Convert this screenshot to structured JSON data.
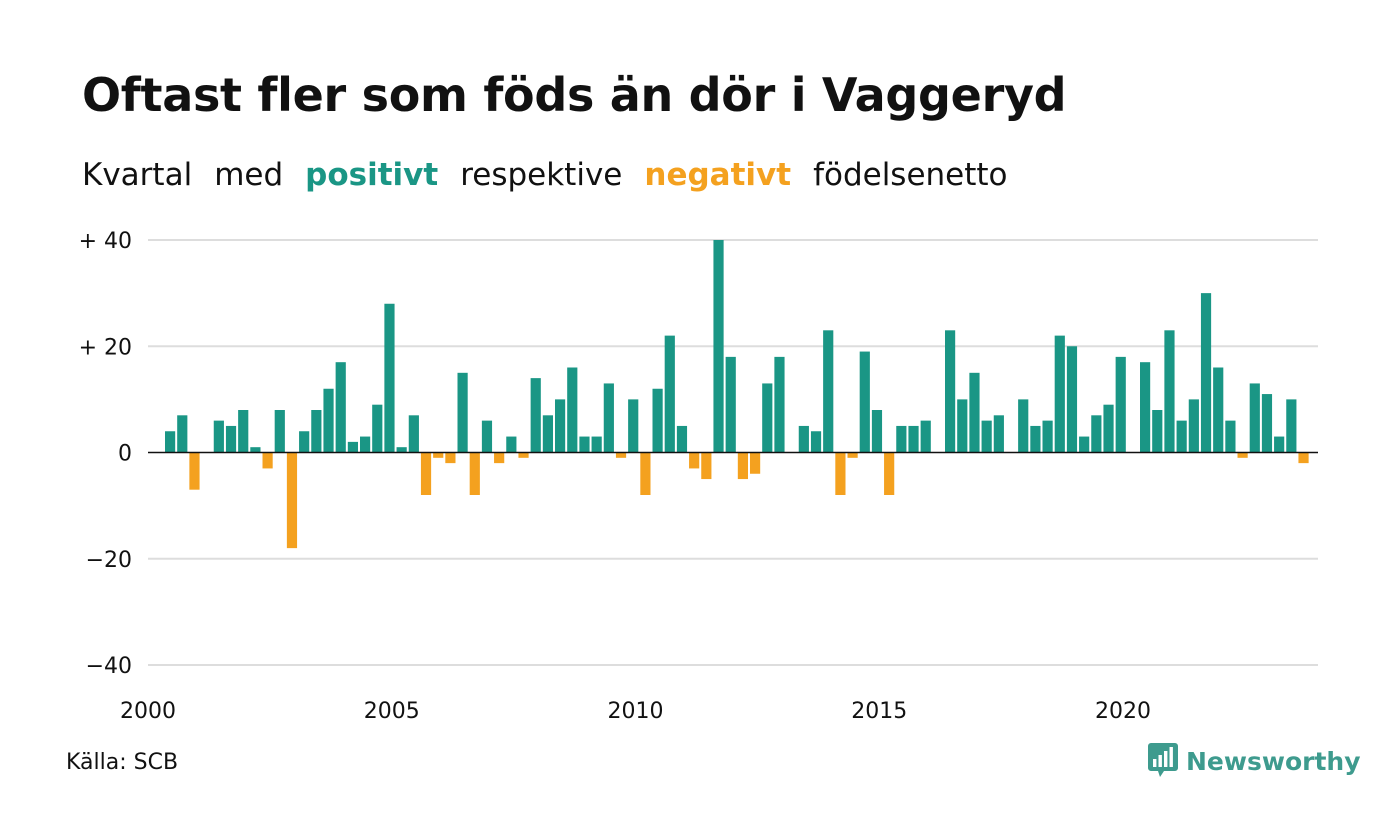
{
  "title": "Oftast fler som föds än dör i Vaggeryd",
  "subtitle": {
    "words": [
      "Kvartal",
      "med",
      "positivt",
      "respektive",
      "negativt",
      "födelsenetto"
    ],
    "positive_word": "positivt",
    "negative_word": "negativt"
  },
  "colors": {
    "positive": "#1a9685",
    "negative": "#f4a11f",
    "grid": "#dddddd",
    "axis": "#111111",
    "brand": "#3e9b8e"
  },
  "source": "Källa: SCB",
  "brand": {
    "name": "Newsworthy",
    "icon": "bar-chart-speech-bubble-icon"
  },
  "chart_data": {
    "type": "bar",
    "xlim": [
      2000,
      2024
    ],
    "ylim": [
      -40,
      40
    ],
    "yticks": [
      {
        "value": 40,
        "label": "+ 40"
      },
      {
        "value": 20,
        "label": "+ 20"
      },
      {
        "value": 0,
        "label": "0"
      },
      {
        "value": -20,
        "label": "−20"
      },
      {
        "value": -40,
        "label": "−40"
      }
    ],
    "xticks": [
      {
        "value": 2000,
        "label": "2000"
      },
      {
        "value": 2005,
        "label": "2005"
      },
      {
        "value": 2010,
        "label": "2010"
      },
      {
        "value": 2015,
        "label": "2015"
      },
      {
        "value": 2020,
        "label": "2020"
      }
    ],
    "grid": true,
    "legend": "none",
    "first_quarter": "2000 Q1",
    "values": [
      4,
      7,
      -7,
      0,
      6,
      5,
      8,
      1,
      -3,
      8,
      -18,
      4,
      8,
      12,
      17,
      2,
      3,
      9,
      28,
      1,
      7,
      -8,
      -1,
      -2,
      15,
      -8,
      6,
      -2,
      3,
      -1,
      14,
      7,
      10,
      16,
      3,
      3,
      13,
      -1,
      10,
      -8,
      12,
      22,
      5,
      -3,
      -5,
      40,
      18,
      -5,
      -4,
      13,
      18,
      0,
      5,
      4,
      23,
      -8,
      -1,
      19,
      8,
      -8,
      5,
      5,
      6,
      0,
      23,
      10,
      15,
      6,
      7,
      0,
      10,
      5,
      6,
      22,
      20,
      3,
      7,
      9,
      18,
      0,
      17,
      8,
      23,
      6,
      10,
      30,
      16,
      6,
      -1,
      13,
      11,
      3,
      10,
      -2
    ]
  }
}
